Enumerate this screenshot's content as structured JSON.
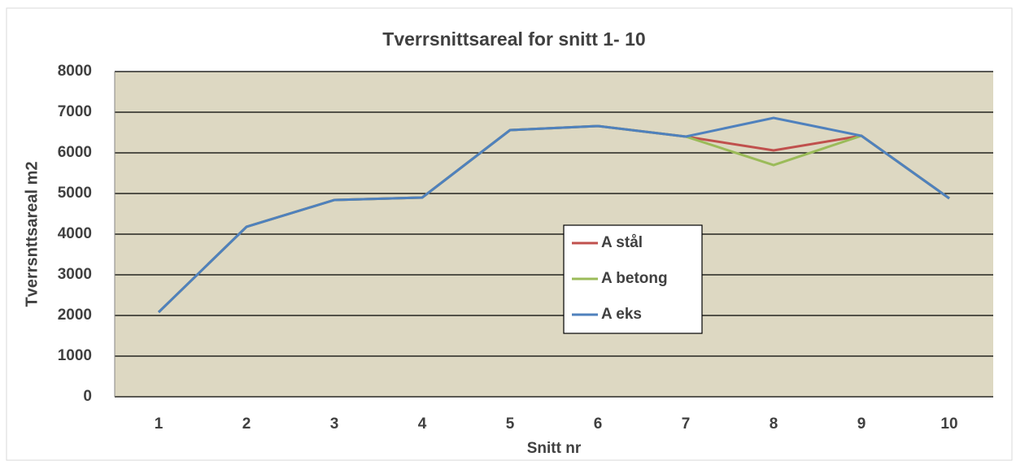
{
  "chart_data": {
    "type": "line",
    "title": "Tverrsnittsareal for snitt 1- 10",
    "x_label": "Snitt nr",
    "y_label": "Tverrsnttsareal m2",
    "categories": [
      "1",
      "2",
      "3",
      "4",
      "5",
      "6",
      "7",
      "8",
      "9",
      "10"
    ],
    "series": [
      {
        "name": "A stål",
        "color": "#c0504d",
        "values": [
          2080,
          4180,
          4840,
          4900,
          6560,
          6660,
          6400,
          6060,
          6420,
          4880
        ]
      },
      {
        "name": "A betong",
        "color": "#9bbb59",
        "values": [
          2080,
          4180,
          4840,
          4900,
          6560,
          6660,
          6400,
          5700,
          6420,
          4880
        ]
      },
      {
        "name": "A eks",
        "color": "#4f81bd",
        "values": [
          2080,
          4180,
          4840,
          4900,
          6560,
          6660,
          6400,
          6860,
          6420,
          4880
        ]
      }
    ],
    "ylim": [
      0,
      8000
    ],
    "yticks": [
      0,
      1000,
      2000,
      3000,
      4000,
      5000,
      6000,
      7000,
      8000
    ],
    "grid": true,
    "legend": "center",
    "background": "#ddd8c2"
  }
}
